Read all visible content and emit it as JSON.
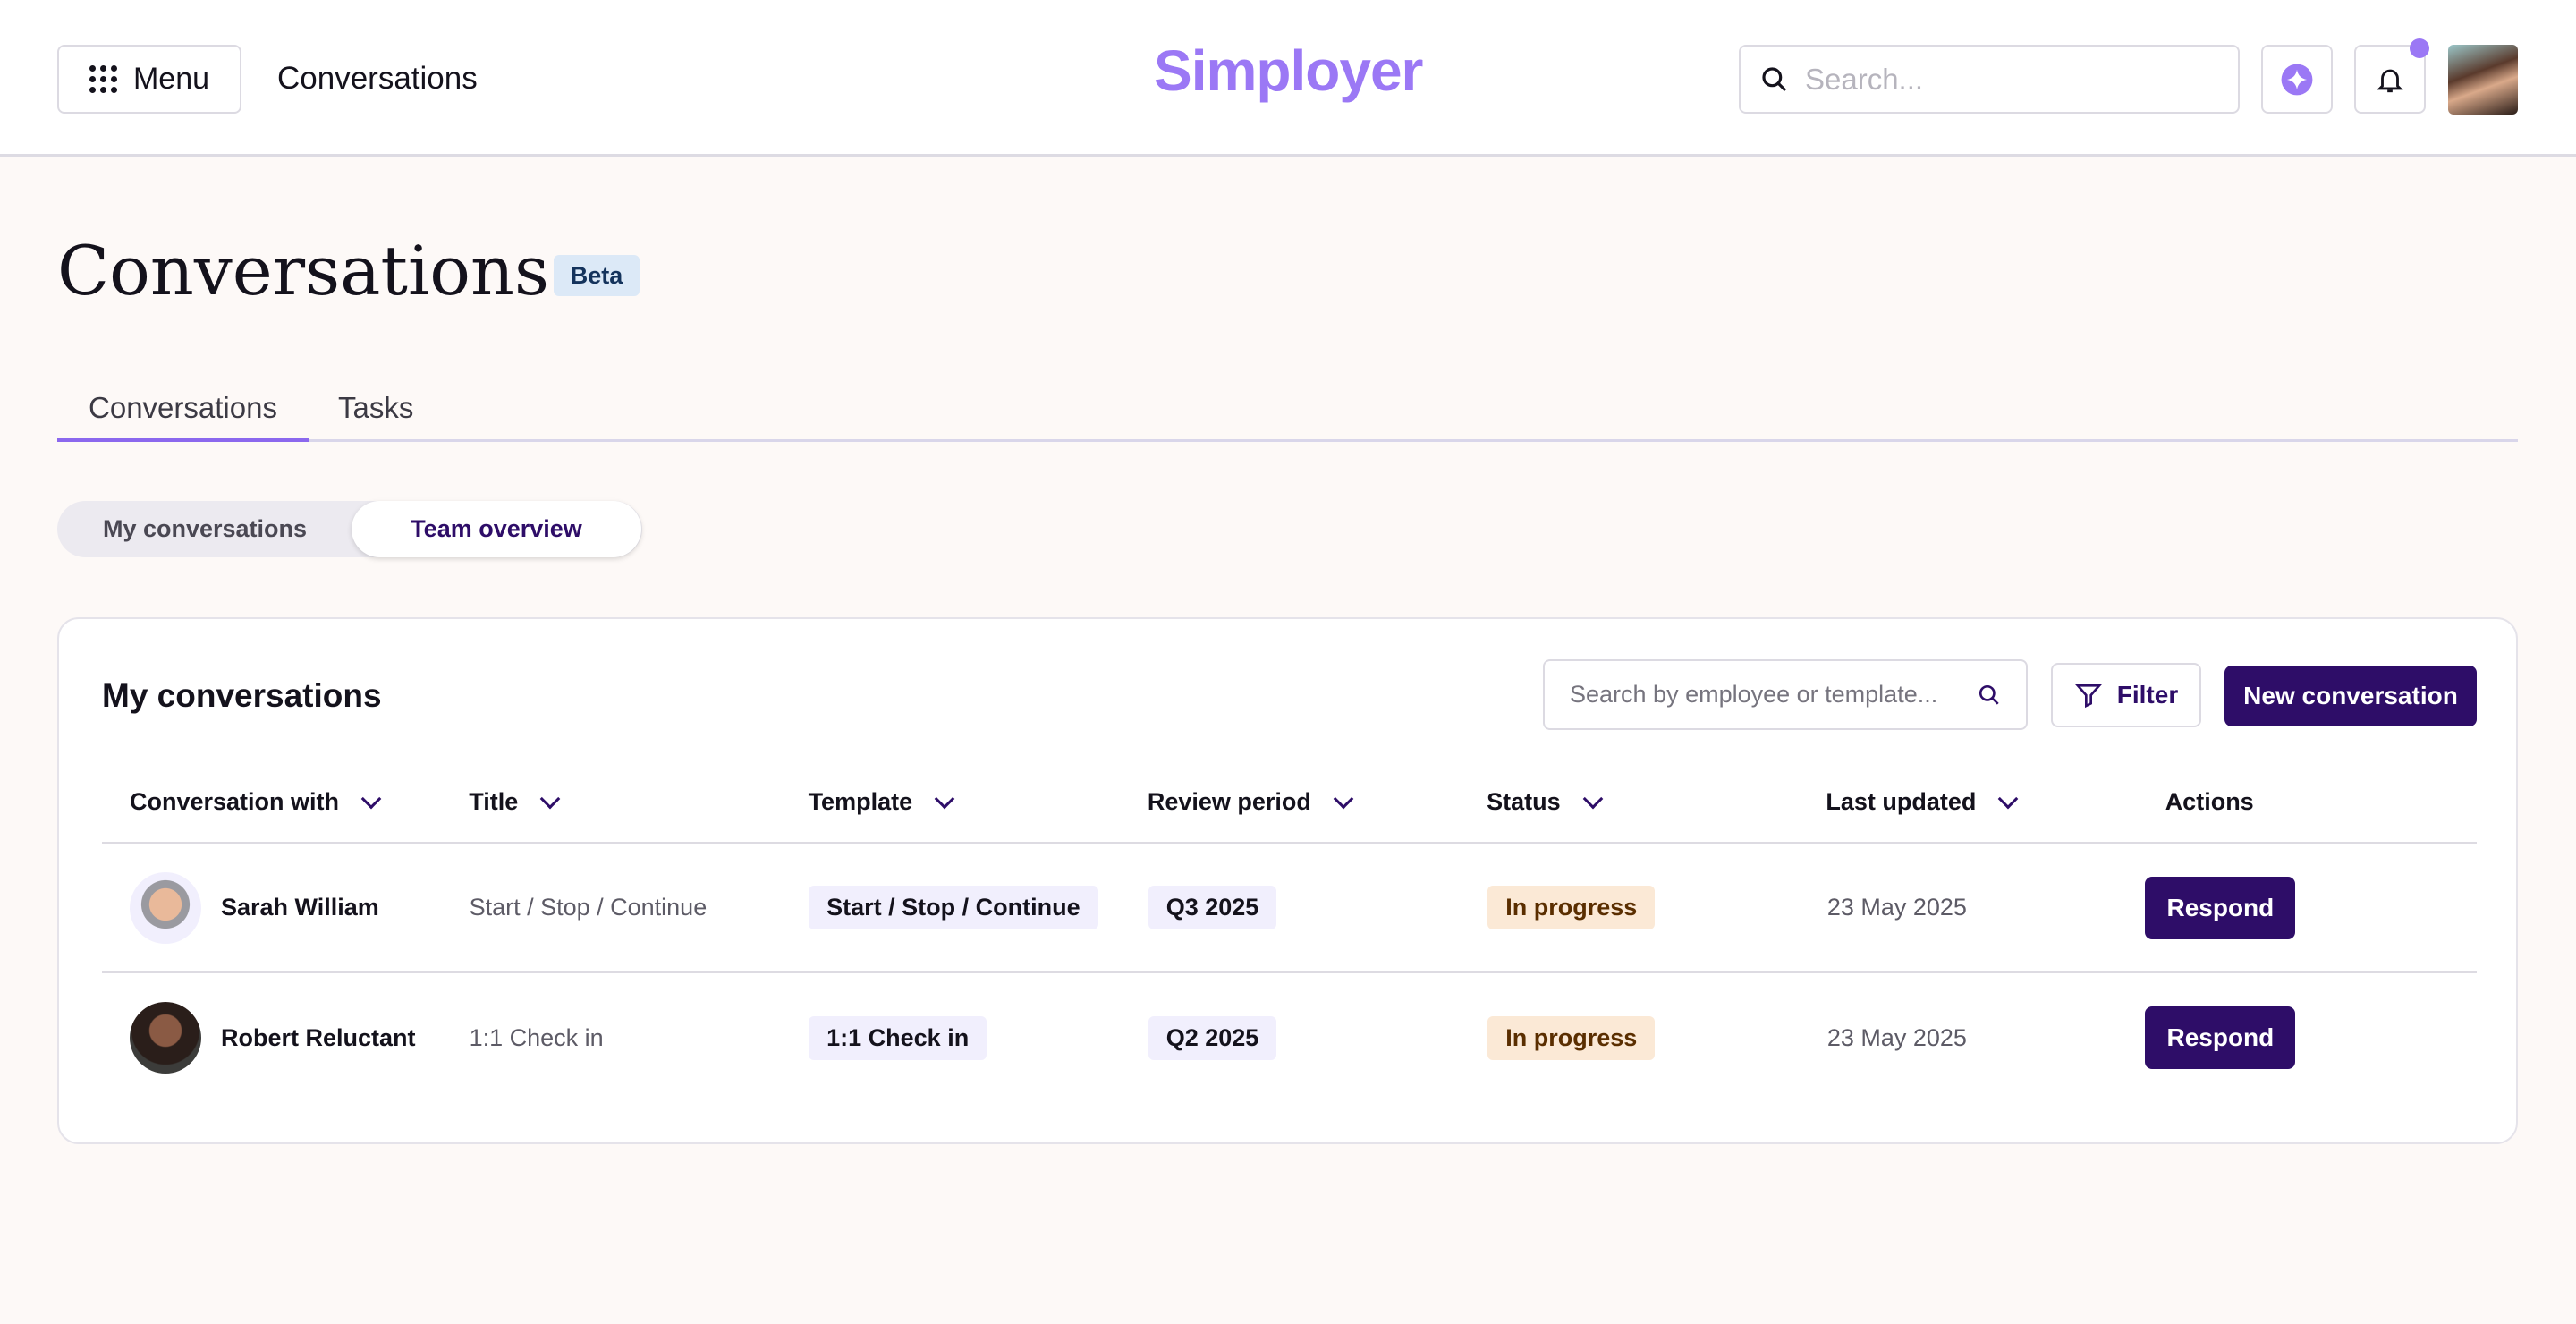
{
  "header": {
    "menu_label": "Menu",
    "nav_title": "Conversations",
    "logo": "Simployer",
    "search_placeholder": "Search..."
  },
  "page": {
    "title": "Conversations",
    "badge": "Beta"
  },
  "tabs": [
    {
      "label": "Conversations",
      "active": true
    },
    {
      "label": "Tasks",
      "active": false
    }
  ],
  "segments": [
    {
      "label": "My conversations",
      "active": false
    },
    {
      "label": "Team overview",
      "active": true
    }
  ],
  "card": {
    "title": "My conversations",
    "search_placeholder": "Search by employee or template...",
    "filter_label": "Filter",
    "new_label": "New conversation",
    "columns": [
      "Conversation with",
      "Title",
      "Template",
      "Review period",
      "Status",
      "Last updated",
      "Actions"
    ],
    "rows": [
      {
        "name": "Sarah William",
        "title": "Start / Stop / Continue",
        "template": "Start / Stop / Continue",
        "period": "Q3 2025",
        "status": "In progress",
        "updated": "23 May 2025",
        "action": "Respond"
      },
      {
        "name": "Robert Reluctant",
        "title": "1:1 Check in",
        "template": "1:1 Check in",
        "period": "Q2 2025",
        "status": "In progress",
        "updated": "23 May 2025",
        "action": "Respond"
      }
    ]
  },
  "colors": {
    "brand": "#9b78f5",
    "primary": "#2e0d68",
    "status_bg": "#fbe9d6"
  }
}
